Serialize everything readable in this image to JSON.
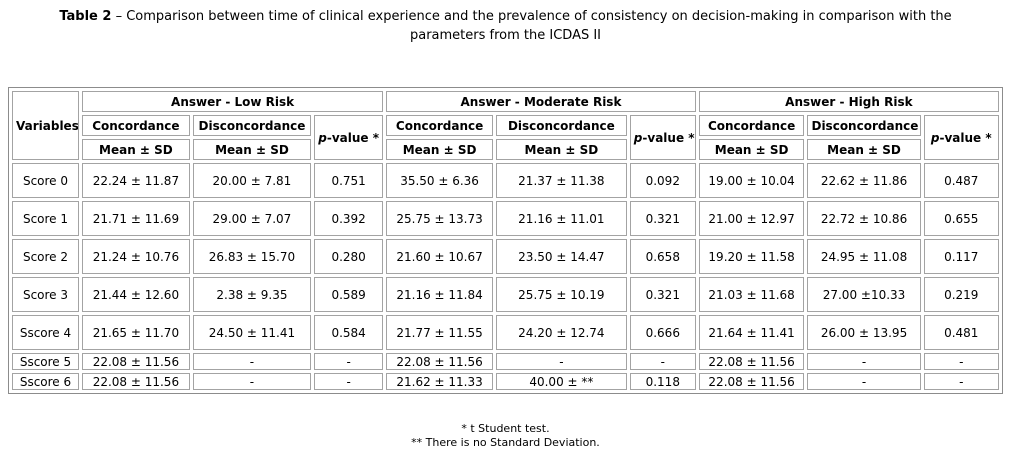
{
  "title": {
    "label": "Table 2",
    "rest": "– Comparison between time of clinical experience and the prevalence of consistency on decision-making in comparison with the parameters from the ICDAS II"
  },
  "table": {
    "variables_header": "Variables",
    "groups": [
      {
        "label": "Answer - Low Risk"
      },
      {
        "label": "Answer - Moderate Risk"
      },
      {
        "label": "Answer - High Risk"
      }
    ],
    "subheaders": {
      "concordance": "Concordance",
      "disconcordance": "Disconcordance",
      "p_italic": "p",
      "p_rest": "-value *",
      "mean_sd": "Mean ± SD"
    },
    "rows": [
      {
        "variable": "Score 0",
        "cells": [
          "22.24 ± 11.87",
          "20.00 ± 7.81",
          "0.751",
          "35.50 ± 6.36",
          "21.37 ± 11.38",
          "0.092",
          "19.00 ± 10.04",
          "22.62 ± 11.86",
          "0.487"
        ]
      },
      {
        "variable": "Score 1",
        "cells": [
          "21.71 ± 11.69",
          "29.00 ± 7.07",
          "0.392",
          "25.75 ± 13.73",
          "21.16 ± 11.01",
          "0.321",
          "21.00 ± 12.97",
          "22.72 ± 10.86",
          "0.655"
        ]
      },
      {
        "variable": "Score 2",
        "cells": [
          "21.24 ± 10.76",
          "26.83 ± 15.70",
          "0.280",
          "21.60 ± 10.67",
          "23.50 ± 14.47",
          "0.658",
          "19.20 ± 11.58",
          "24.95 ± 11.08",
          "0.117"
        ]
      },
      {
        "variable": "Score 3",
        "cells": [
          "21.44 ± 12.60",
          "2.38 ± 9.35",
          "0.589",
          "21.16 ± 11.84",
          "25.75 ± 10.19",
          "0.321",
          "21.03 ± 11.68",
          "27.00 ±10.33",
          "0.219"
        ]
      },
      {
        "variable": "Sscore 4",
        "cells": [
          "21.65 ± 11.70",
          "24.50 ± 11.41",
          "0.584",
          "21.77 ± 11.55",
          "24.20 ± 12.74",
          "0.666",
          "21.64 ± 11.41",
          "26.00 ± 13.95",
          "0.481"
        ]
      },
      {
        "variable": "Sscore 5",
        "cells": [
          "22.08 ± 11.56",
          "-",
          "-",
          "22.08 ± 11.56",
          "-",
          "-",
          "22.08 ± 11.56",
          "-",
          "-"
        ]
      },
      {
        "variable": "Sscore 6",
        "cells": [
          "22.08 ± 11.56",
          "-",
          "-",
          "21.62 ± 11.33",
          "40.00 ± **",
          "0.118",
          "22.08 ± 11.56",
          "-",
          "-"
        ]
      }
    ]
  },
  "footnotes": {
    "line1": "* t Student test.",
    "line2": "** There is no Standard Deviation."
  }
}
